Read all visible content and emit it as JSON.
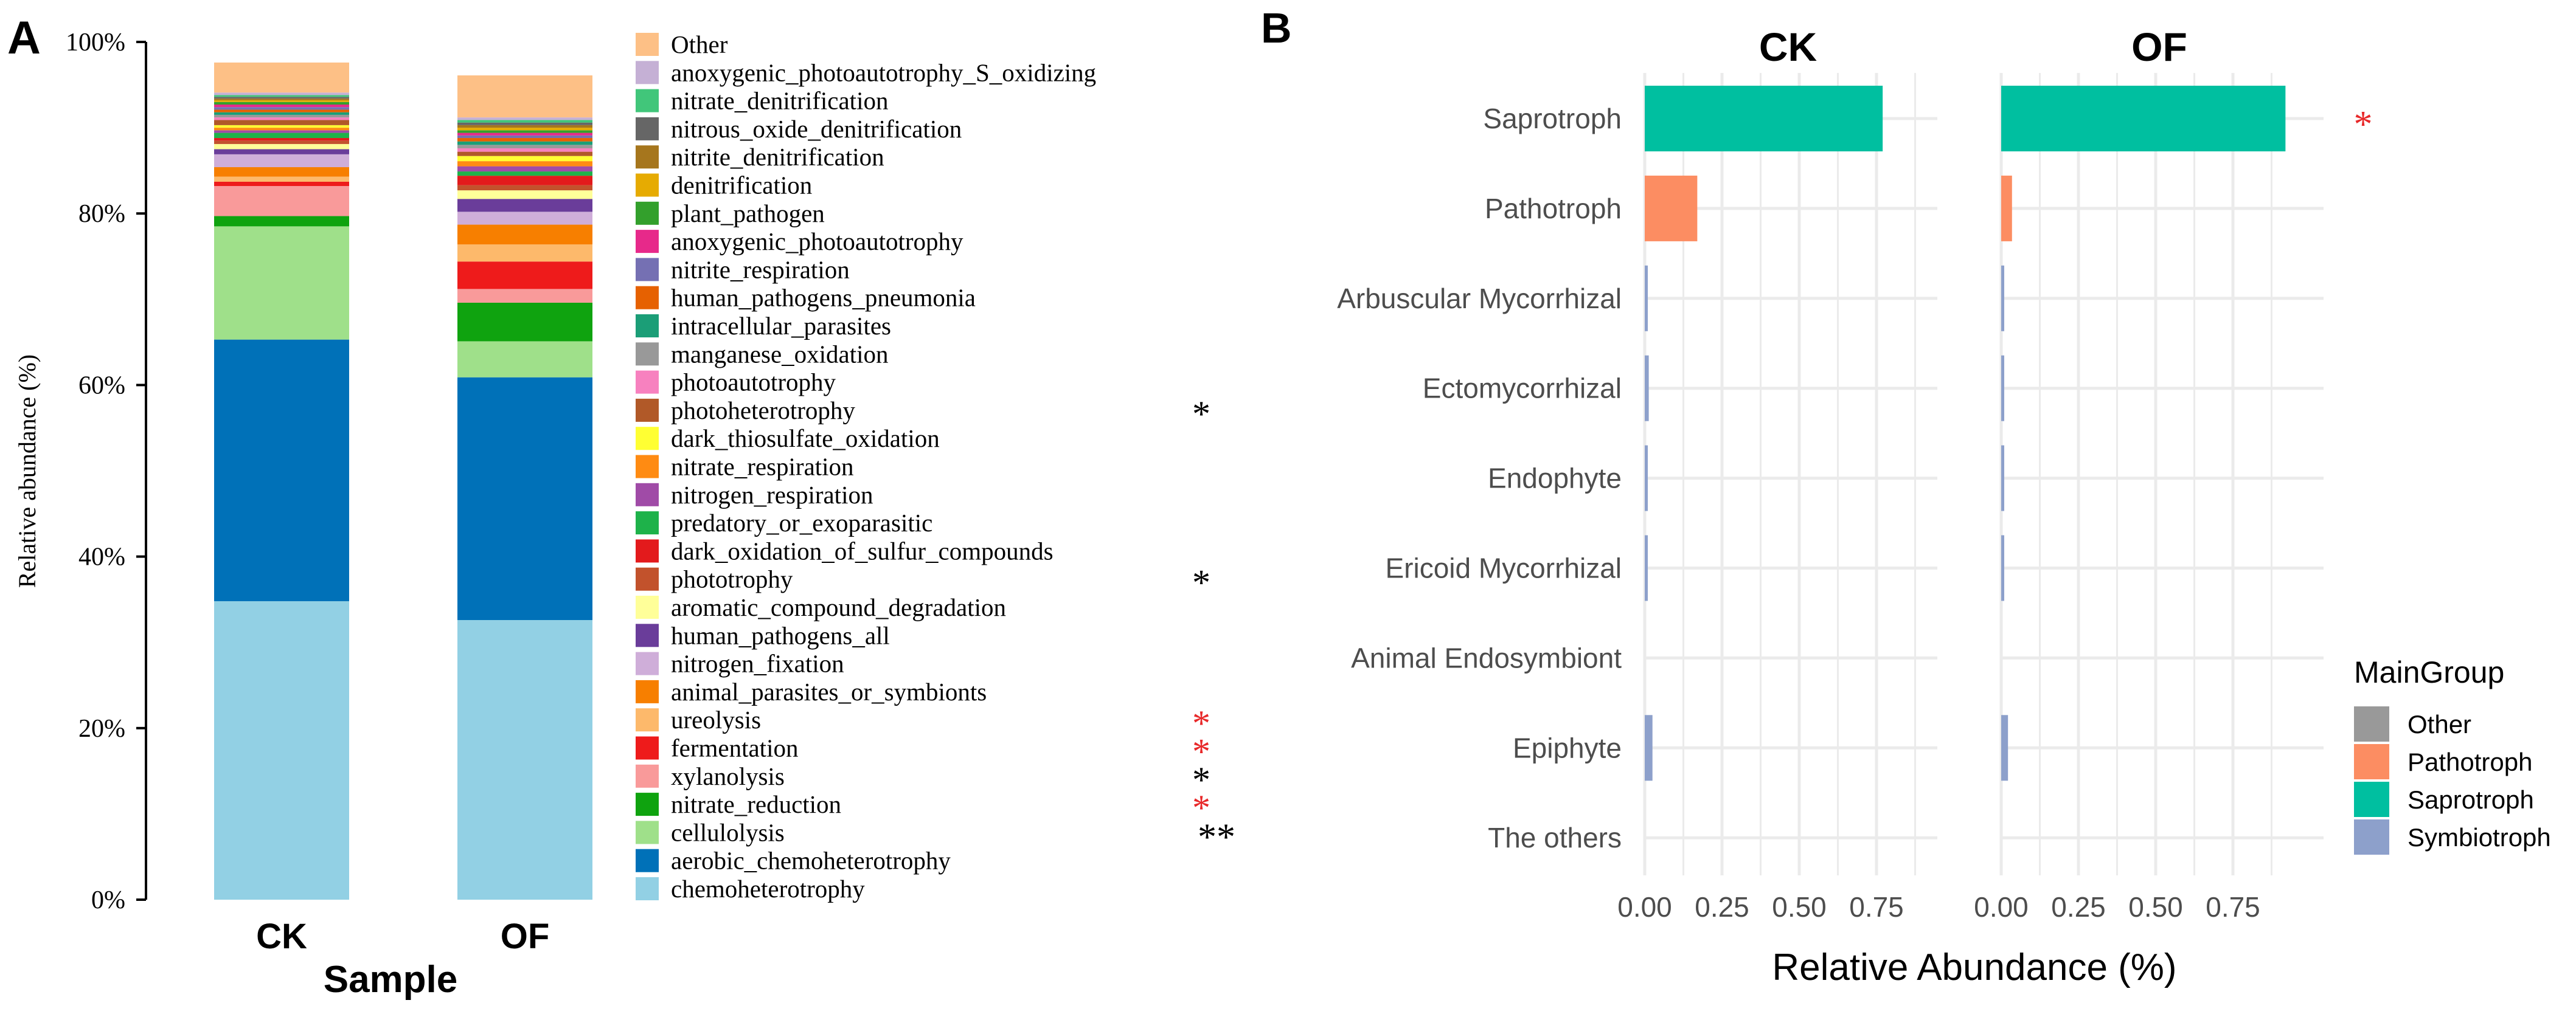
{
  "panel_a_label": "A",
  "panel_b_label": "B",
  "chart_data": [
    {
      "type": "bar",
      "stacked": true,
      "title": "",
      "xlabel": "Sample",
      "ylabel": "Relative abundance (%)",
      "ylim": [
        0,
        100
      ],
      "yticks": [
        "0%",
        "20%",
        "40%",
        "60%",
        "80%",
        "100%"
      ],
      "categories": [
        "CK",
        "OF"
      ],
      "legend_order_top_to_bottom": [
        "Other",
        "anoxygenic_photoautotrophy_S_oxidizing",
        "nitrate_denitrification",
        "nitrous_oxide_denitrification",
        "nitrite_denitrification",
        "denitrification",
        "plant_pathogen",
        "anoxygenic_photoautotrophy",
        "nitrite_respiration",
        "human_pathogens_pneumonia",
        "intracellular_parasites",
        "manganese_oxidation",
        "photoautotrophy",
        "photoheterotrophy",
        "dark_thiosulfate_oxidation",
        "nitrate_respiration",
        "nitrogen_respiration",
        "predatory_or_exoparasitic",
        "dark_oxidation_of_sulfur_compounds",
        "phototrophy",
        "aromatic_compound_degradation",
        "human_pathogens_all",
        "nitrogen_fixation",
        "animal_parasites_or_symbionts",
        "ureolysis",
        "fermentation",
        "xylanolysis",
        "nitrate_reduction",
        "cellulolysis",
        "aerobic_chemoheterotrophy",
        "chemoheterotrophy"
      ],
      "series": [
        {
          "name": "chemoheterotrophy",
          "color": "#92d0e4",
          "values": [
            34.8,
            32.6
          ],
          "sig": "",
          "sig_color": "#000000"
        },
        {
          "name": "aerobic_chemoheterotrophy",
          "color": "#0071b8",
          "values": [
            30.5,
            28.3
          ],
          "sig": "",
          "sig_color": "#000000"
        },
        {
          "name": "cellulolysis",
          "color": "#9fe08a",
          "values": [
            13.2,
            4.2
          ],
          "sig": "**",
          "sig_color": "#000000"
        },
        {
          "name": "nitrate_reduction",
          "color": "#0fa30f",
          "values": [
            1.2,
            4.5
          ],
          "sig": "*",
          "sig_color": "#e8292a"
        },
        {
          "name": "xylanolysis",
          "color": "#f99a9a",
          "values": [
            3.5,
            1.6
          ],
          "sig": "*",
          "sig_color": "#000000"
        },
        {
          "name": "fermentation",
          "color": "#ee1b1b",
          "values": [
            0.5,
            3.2
          ],
          "sig": "*",
          "sig_color": "#e8292a"
        },
        {
          "name": "ureolysis",
          "color": "#fdb96b",
          "values": [
            0.6,
            2.0
          ],
          "sig": "*",
          "sig_color": "#e8292a"
        },
        {
          "name": "animal_parasites_or_symbionts",
          "color": "#f77f00",
          "values": [
            1.1,
            2.3
          ],
          "sig": "",
          "sig_color": "#000000"
        },
        {
          "name": "nitrogen_fixation",
          "color": "#cfaed9",
          "values": [
            1.5,
            1.5
          ],
          "sig": "",
          "sig_color": "#000000"
        },
        {
          "name": "human_pathogens_all",
          "color": "#6a3d9a",
          "values": [
            0.6,
            1.5
          ],
          "sig": "",
          "sig_color": "#000000"
        },
        {
          "name": "aromatic_compound_degradation",
          "color": "#ffff99",
          "values": [
            0.6,
            1.0
          ],
          "sig": "",
          "sig_color": "#000000"
        },
        {
          "name": "phototrophy",
          "color": "#c2522c",
          "values": [
            0.4,
            0.6
          ],
          "sig": "*",
          "sig_color": "#000000"
        },
        {
          "name": "dark_oxidation_of_sulfur_compounds",
          "color": "#e31a1c",
          "values": [
            0.3,
            1.1
          ],
          "sig": "",
          "sig_color": "#000000"
        },
        {
          "name": "predatory_or_exoparasitic",
          "color": "#1eb24a",
          "values": [
            0.6,
            0.5
          ],
          "sig": "",
          "sig_color": "#000000"
        },
        {
          "name": "nitrogen_respiration",
          "color": "#a04ba7",
          "values": [
            0.3,
            0.6
          ],
          "sig": "",
          "sig_color": "#000000"
        },
        {
          "name": "nitrate_respiration",
          "color": "#ff8b12",
          "values": [
            0.3,
            0.6
          ],
          "sig": "",
          "sig_color": "#000000"
        },
        {
          "name": "dark_thiosulfate_oxidation",
          "color": "#ffff33",
          "values": [
            0.3,
            0.6
          ],
          "sig": "",
          "sig_color": "#000000"
        },
        {
          "name": "photoheterotrophy",
          "color": "#b15928",
          "values": [
            0.6,
            0.5
          ],
          "sig": "*",
          "sig_color": "#000000"
        },
        {
          "name": "photoautotrophy",
          "color": "#f781bf",
          "values": [
            0.3,
            0.4
          ],
          "sig": "",
          "sig_color": "#000000"
        },
        {
          "name": "manganese_oxidation",
          "color": "#999999",
          "values": [
            0.3,
            0.4
          ],
          "sig": "",
          "sig_color": "#000000"
        },
        {
          "name": "intracellular_parasites",
          "color": "#1b9e77",
          "values": [
            0.3,
            0.4
          ],
          "sig": "",
          "sig_color": "#000000"
        },
        {
          "name": "human_pathogens_pneumonia",
          "color": "#e66101",
          "values": [
            0.3,
            0.4
          ],
          "sig": "",
          "sig_color": "#000000"
        },
        {
          "name": "nitrite_respiration",
          "color": "#7570b3",
          "values": [
            0.3,
            0.3
          ],
          "sig": "",
          "sig_color": "#000000"
        },
        {
          "name": "anoxygenic_photoautotrophy",
          "color": "#e7298a",
          "values": [
            0.3,
            0.3
          ],
          "sig": "",
          "sig_color": "#000000"
        },
        {
          "name": "plant_pathogen",
          "color": "#33a02c",
          "values": [
            0.3,
            0.3
          ],
          "sig": "",
          "sig_color": "#000000"
        },
        {
          "name": "denitrification",
          "color": "#e6ab02",
          "values": [
            0.2,
            0.3
          ],
          "sig": "",
          "sig_color": "#000000"
        },
        {
          "name": "nitrite_denitrification",
          "color": "#a6761d",
          "values": [
            0.2,
            0.3
          ],
          "sig": "",
          "sig_color": "#000000"
        },
        {
          "name": "nitrous_oxide_denitrification",
          "color": "#666666",
          "values": [
            0.2,
            0.3
          ],
          "sig": "",
          "sig_color": "#000000"
        },
        {
          "name": "nitrate_denitrification",
          "color": "#41c67a",
          "values": [
            0.2,
            0.3
          ],
          "sig": "",
          "sig_color": "#000000"
        },
        {
          "name": "anoxygenic_photoautotrophy_S_oxidizing",
          "color": "#c5b0d5",
          "values": [
            0.3,
            0.3
          ],
          "sig": "",
          "sig_color": "#000000"
        },
        {
          "name": "Other",
          "color": "#fdc086",
          "values": [
            3.5,
            4.9
          ],
          "sig": "",
          "sig_color": "#000000"
        }
      ]
    },
    {
      "type": "bar",
      "orientation": "horizontal",
      "facets": [
        "CK",
        "OF"
      ],
      "xlabel": "Relative Abundance (%)",
      "ylabel": "",
      "xlim": [
        0,
        0.9
      ],
      "xticks": [
        "0.00",
        "0.25",
        "0.50",
        "0.75"
      ],
      "categories": [
        "Saprotroph",
        "Pathotroph",
        "Arbuscular Mycorrhizal",
        "Ectomycorrhizal",
        "Endophyte",
        "Ericoid Mycorrhizal",
        "Animal Endosymbiont",
        "Epiphyte",
        "The others"
      ],
      "groups": [
        "Saprotroph",
        "Pathotroph",
        "Symbiotroph",
        "Symbiotroph",
        "Symbiotroph",
        "Symbiotroph",
        "Symbiotroph",
        "Symbiotroph",
        "Other"
      ],
      "values": {
        "CK": [
          0.77,
          0.17,
          0.003,
          0.013,
          0.003,
          0.005,
          0.0,
          0.025,
          0.0
        ],
        "OF": [
          0.92,
          0.035,
          0.002,
          0.008,
          0.002,
          0.005,
          0.0,
          0.022,
          0.0
        ]
      },
      "significance": [
        "*",
        "",
        "",
        "",
        "",
        "",
        "",
        "",
        ""
      ],
      "significance_color": "#e8292a",
      "legend_title": "MainGroup",
      "legend": [
        {
          "name": "Other",
          "color": "#999999"
        },
        {
          "name": "Pathotroph",
          "color": "#fc8d62"
        },
        {
          "name": "Saprotroph",
          "color": "#00bfa0"
        },
        {
          "name": "Symbiotroph",
          "color": "#8da0cb"
        }
      ]
    }
  ]
}
